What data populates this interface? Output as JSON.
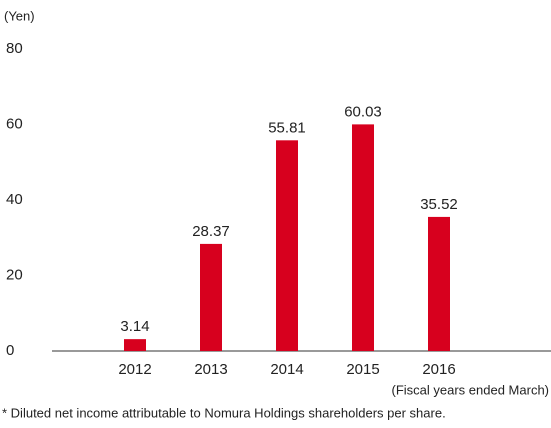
{
  "chart_data": {
    "type": "bar",
    "y_label": "(Yen)",
    "x_label": "(Fiscal years ended March)",
    "footnote": "* Diluted net income attributable to Nomura Holdings shareholders per share.",
    "categories": [
      "2012",
      "2013",
      "2014",
      "2015",
      "2016"
    ],
    "values": [
      3.14,
      28.37,
      55.81,
      60.03,
      35.52
    ],
    "color": "#d7001e",
    "ylim": [
      0,
      80
    ],
    "yticks": [
      0,
      20,
      40,
      60,
      80
    ],
    "grid": false
  }
}
